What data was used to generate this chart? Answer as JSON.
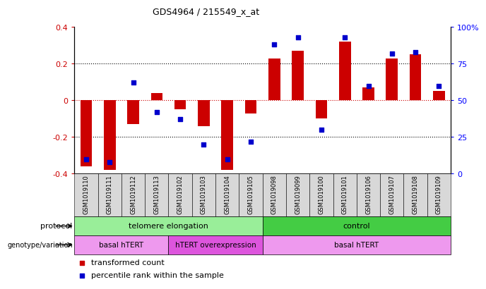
{
  "title": "GDS4964 / 215549_x_at",
  "samples": [
    "GSM1019110",
    "GSM1019111",
    "GSM1019112",
    "GSM1019113",
    "GSM1019102",
    "GSM1019103",
    "GSM1019104",
    "GSM1019105",
    "GSM1019098",
    "GSM1019099",
    "GSM1019100",
    "GSM1019101",
    "GSM1019106",
    "GSM1019107",
    "GSM1019108",
    "GSM1019109"
  ],
  "bar_values": [
    -0.36,
    -0.38,
    -0.13,
    0.04,
    -0.05,
    -0.14,
    -0.38,
    -0.07,
    0.23,
    0.27,
    -0.1,
    0.32,
    0.07,
    0.23,
    0.25,
    0.05
  ],
  "dot_values_pct": [
    10,
    8,
    62,
    42,
    37,
    20,
    10,
    22,
    88,
    93,
    30,
    93,
    60,
    82,
    83,
    60
  ],
  "ylim_left": [
    -0.4,
    0.4
  ],
  "ylim_right": [
    0,
    100
  ],
  "bar_color": "#cc0000",
  "dot_color": "#0000cc",
  "plot_bg": "#ffffff",
  "protocol_labels": [
    {
      "text": "telomere elongation",
      "start": 0,
      "end": 7,
      "color": "#99ee99"
    },
    {
      "text": "control",
      "start": 8,
      "end": 15,
      "color": "#44cc44"
    }
  ],
  "genotype_labels": [
    {
      "text": "basal hTERT",
      "start": 0,
      "end": 3,
      "color": "#ee99ee"
    },
    {
      "text": "hTERT overexpression",
      "start": 4,
      "end": 7,
      "color": "#dd55dd"
    },
    {
      "text": "basal hTERT",
      "start": 8,
      "end": 15,
      "color": "#ee99ee"
    }
  ],
  "legend_items": [
    {
      "label": "transformed count",
      "color": "#cc0000"
    },
    {
      "label": "percentile rank within the sample",
      "color": "#0000cc"
    }
  ],
  "left_yticks": [
    -0.4,
    -0.2,
    0.0,
    0.2,
    0.4
  ],
  "left_yticklabels": [
    "-0.4",
    "-0.2",
    "0",
    "0.2",
    "0.4"
  ],
  "right_ticks": [
    0,
    25,
    50,
    75,
    100
  ],
  "right_tick_labels": [
    "0",
    "25",
    "50",
    "75",
    "100%"
  ],
  "dotted_lines_black": [
    -0.2,
    0.2
  ],
  "dotted_line_red": 0.0
}
